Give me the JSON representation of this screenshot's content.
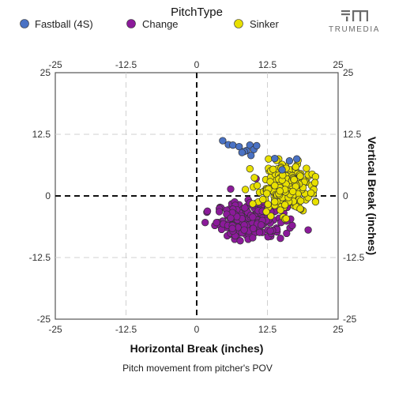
{
  "logo": {
    "text": "TRUMEDIA"
  },
  "chart_data": {
    "type": "scatter",
    "legend_title": "PitchType",
    "legend_position": "top",
    "xlabel": "Horizontal Break (inches)",
    "ylabel": "Vertical Break (inches)",
    "caption": "Pitch movement from pitcher's POV",
    "xlim": [
      -25,
      25
    ],
    "ylim": [
      -25,
      25
    ],
    "x_ticks": [
      "-25",
      "-12.5",
      "0",
      "12.5",
      "25"
    ],
    "y_ticks": [
      "25",
      "12.5",
      "0",
      "-12.5",
      "-25"
    ],
    "grid": true,
    "series": [
      {
        "name": "Fastball (4S)",
        "color": "#4a72c4",
        "points": []
      },
      {
        "name": "Change",
        "color": "#8b1a9a",
        "points": []
      },
      {
        "name": "Sinker",
        "color": "#e8e000",
        "points": []
      }
    ]
  }
}
